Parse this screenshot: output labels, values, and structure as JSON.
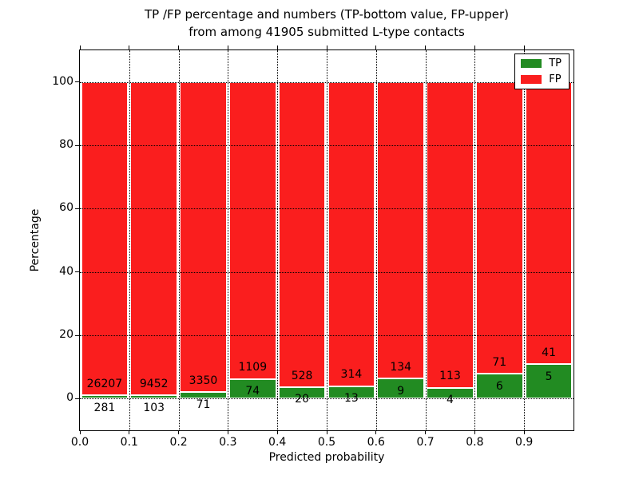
{
  "figure": {
    "title_line1": "TP /FP percentage and numbers (TP-bottom value, FP-upper)",
    "title_line2": "from among 41905 submitted L-type contacts",
    "xlabel": "Predicted probability",
    "ylabel": "Percentage"
  },
  "legend": {
    "items": [
      {
        "label": "TP",
        "color": "#228b22"
      },
      {
        "label": "FP",
        "color": "#fa1e1e"
      }
    ]
  },
  "chart_data": {
    "type": "bar",
    "stacked": true,
    "normalized": "each bin scaled to 100%",
    "title": "TP /FP percentage and numbers (TP-bottom value, FP-upper) from among 41905 submitted L-type contacts",
    "total_submitted_contacts": 41905,
    "xlabel": "Predicted probability",
    "ylabel": "Percentage",
    "categories": [
      "0.0-0.1",
      "0.1-0.2",
      "0.2-0.3",
      "0.3-0.4",
      "0.4-0.5",
      "0.5-0.6",
      "0.6-0.7",
      "0.7-0.8",
      "0.8-0.9",
      "0.9-1.0"
    ],
    "series": [
      {
        "name": "TP",
        "color": "#228b22",
        "values": [
          281,
          103,
          71,
          74,
          20,
          13,
          9,
          4,
          6,
          5
        ]
      },
      {
        "name": "FP",
        "color": "#fa1e1e",
        "values": [
          26207,
          9452,
          3350,
          1109,
          528,
          314,
          134,
          113,
          71,
          41
        ]
      }
    ],
    "tp_percent_per_bin": [
      1.06,
      1.08,
      2.08,
      6.26,
      3.65,
      3.98,
      6.29,
      3.42,
      7.79,
      10.87
    ],
    "xlim": [
      0.0,
      1.0
    ],
    "ylim": [
      -10,
      110
    ],
    "xticklabels": [
      "0.0",
      "0.1",
      "0.2",
      "0.3",
      "0.4",
      "0.5",
      "0.6",
      "0.7",
      "0.8",
      "0.9"
    ],
    "yticks": [
      0,
      20,
      40,
      60,
      80,
      100
    ],
    "grid": "dotted black, both axes, drawn above bars",
    "legend_position": "upper right"
  }
}
